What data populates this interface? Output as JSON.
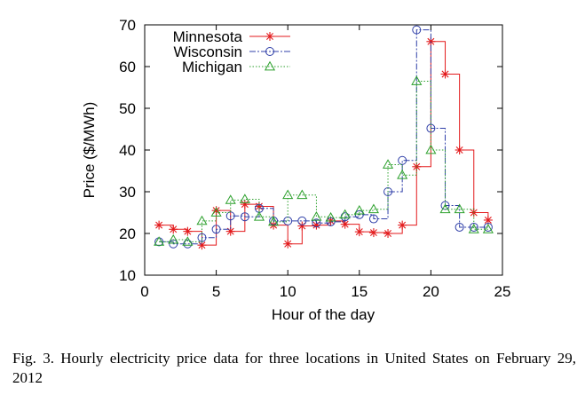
{
  "chart_data": {
    "type": "line",
    "step": true,
    "xlabel": "Hour of the day",
    "ylabel": "Price ($/MWh)",
    "xlim": [
      0,
      25
    ],
    "ylim": [
      10,
      70
    ],
    "xticks": [
      0,
      5,
      10,
      15,
      20,
      25
    ],
    "yticks": [
      10,
      20,
      30,
      40,
      50,
      60,
      70
    ],
    "grid": false,
    "legend_position": "top-left",
    "x": [
      1,
      2,
      3,
      4,
      5,
      6,
      7,
      8,
      9,
      10,
      11,
      12,
      13,
      14,
      15,
      16,
      17,
      18,
      19,
      20,
      21,
      22,
      23,
      24
    ],
    "series": [
      {
        "name": "Minnesota",
        "color": "#e31a1c",
        "marker": "asterisk",
        "values": [
          22,
          21,
          20.5,
          17.2,
          25.5,
          20.5,
          27,
          26.5,
          22,
          17.5,
          21.8,
          22,
          23,
          22.2,
          20.4,
          20.2,
          20,
          22,
          36,
          66,
          58.2,
          40,
          25,
          23.2
        ]
      },
      {
        "name": "Wisconsin",
        "color": "#2f3fa8",
        "marker": "circle",
        "values": [
          18,
          17.5,
          17.5,
          19,
          21,
          24.2,
          24,
          26,
          23,
          23,
          23,
          22.5,
          22.8,
          24,
          24.5,
          23.5,
          30,
          37.5,
          68.8,
          45.2,
          26.7,
          21.5,
          21.5,
          21.5
        ]
      },
      {
        "name": "Michigan",
        "color": "#2ca02c",
        "marker": "triangle",
        "values": [
          18,
          18.5,
          18,
          23,
          25,
          28,
          28.2,
          24,
          22.8,
          29.2,
          29.2,
          24,
          23.8,
          24.5,
          25.5,
          25.8,
          36.5,
          34,
          56.5,
          40,
          25.8,
          25.8,
          21,
          21
        ]
      }
    ]
  },
  "caption": "Fig. 3.  Hourly electricity price data for three locations in United States on February 29, 2012"
}
